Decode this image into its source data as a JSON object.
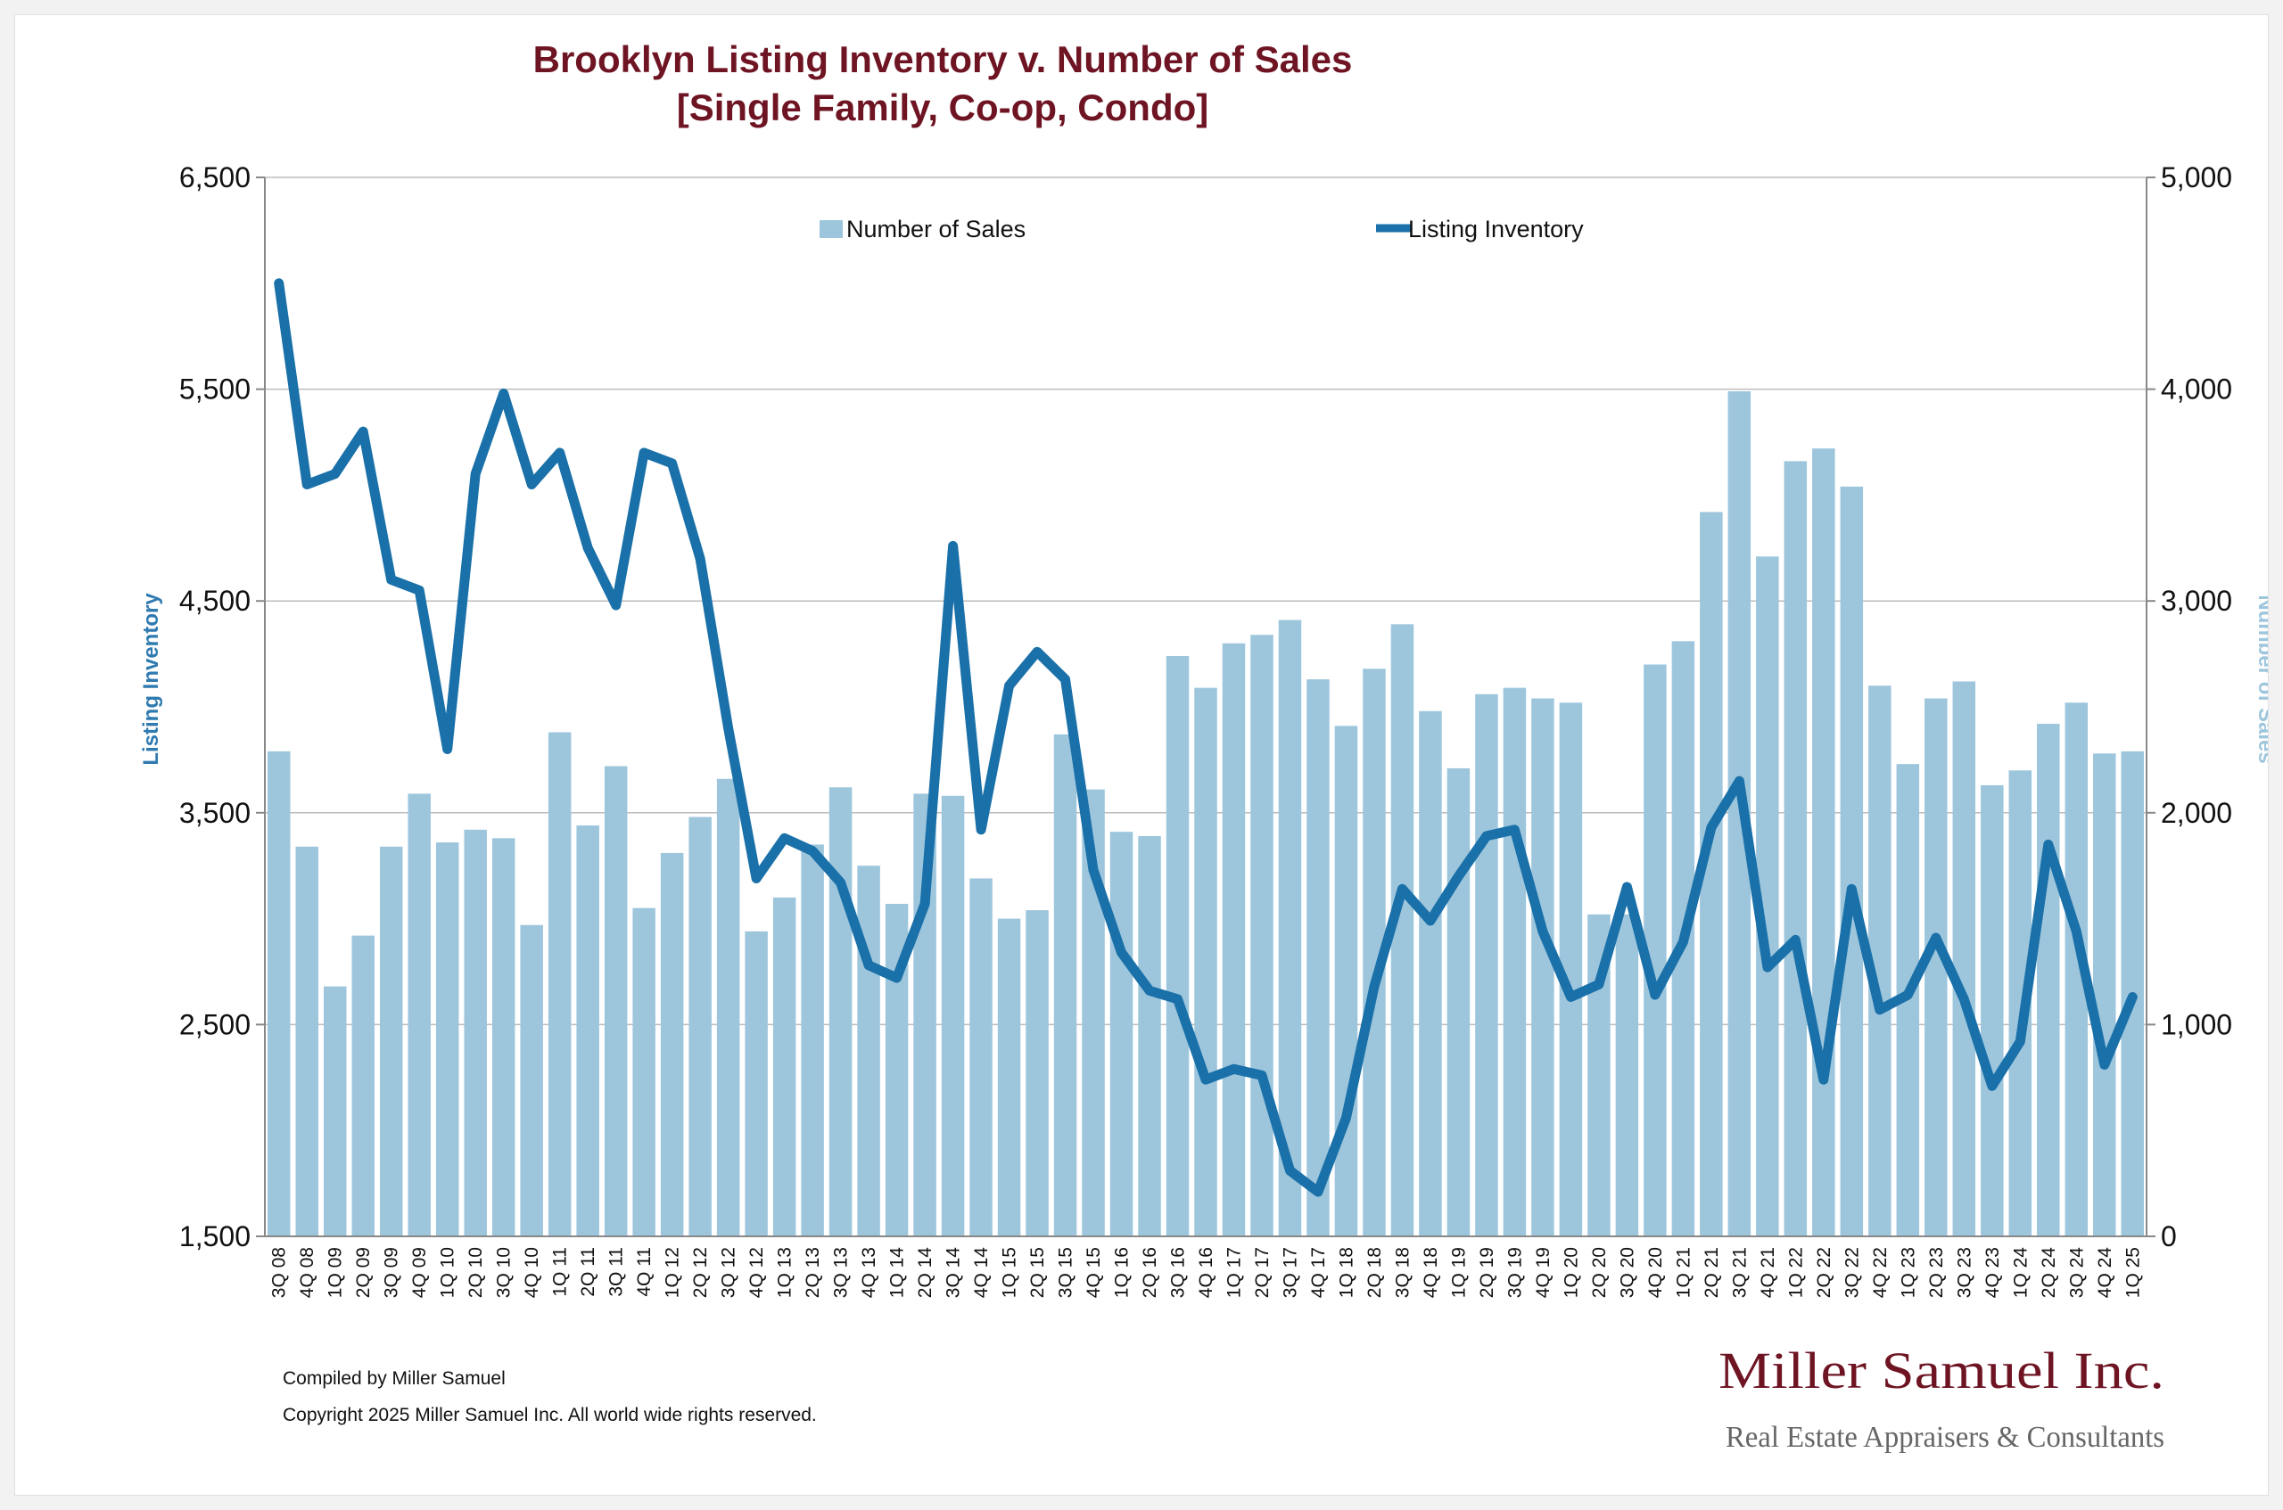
{
  "chart_data": {
    "type": "bar+line",
    "title_line1": "Brooklyn Listing Inventory v. Number of Sales",
    "title_line2": "[Single Family, Co-op, Condo]",
    "ylabel_left": "Listing Inventory",
    "ylabel_right": "Number of Sales",
    "ylim_left": [
      1500,
      6500
    ],
    "ylim_right": [
      0,
      5000
    ],
    "yticks_left": [
      "1,500",
      "2,500",
      "3,500",
      "4,500",
      "5,500",
      "6,500"
    ],
    "yticks_right": [
      "0",
      "1,000",
      "2,000",
      "3,000",
      "4,000",
      "5,000"
    ],
    "grid": true,
    "legend_position": "top-center",
    "categories": [
      "3Q 08",
      "4Q 08",
      "1Q 09",
      "2Q 09",
      "3Q 09",
      "4Q 09",
      "1Q 10",
      "2Q 10",
      "3Q 10",
      "4Q 10",
      "1Q 11",
      "2Q 11",
      "3Q 11",
      "4Q 11",
      "1Q 12",
      "2Q 12",
      "3Q 12",
      "4Q 12",
      "1Q 13",
      "2Q 13",
      "3Q 13",
      "4Q 13",
      "1Q 14",
      "2Q 14",
      "3Q 14",
      "4Q 14",
      "1Q 15",
      "2Q 15",
      "3Q 15",
      "4Q 15",
      "1Q 16",
      "2Q 16",
      "3Q 16",
      "4Q 16",
      "1Q 17",
      "2Q 17",
      "3Q 17",
      "4Q 17",
      "1Q 18",
      "2Q 18",
      "3Q 18",
      "4Q 18",
      "1Q 19",
      "2Q 19",
      "3Q 19",
      "4Q 19",
      "1Q 20",
      "2Q 20",
      "3Q 20",
      "4Q 20",
      "1Q 21",
      "2Q 21",
      "3Q 21",
      "4Q 21",
      "1Q 22",
      "2Q 22",
      "3Q 22",
      "4Q 22",
      "1Q 23",
      "2Q 23",
      "3Q 23",
      "4Q 23",
      "1Q 24",
      "2Q 24",
      "3Q 24",
      "4Q 24",
      "1Q 25"
    ],
    "series": [
      {
        "name": "Number of Sales",
        "type": "bar",
        "axis": "right",
        "color": "#9dc6dd",
        "values": [
          2290,
          1840,
          1180,
          1420,
          1840,
          2090,
          1860,
          1920,
          1880,
          1470,
          2380,
          1940,
          2220,
          1550,
          1810,
          1980,
          2160,
          1440,
          1600,
          1850,
          2120,
          1750,
          1570,
          2090,
          2080,
          1690,
          1500,
          1540,
          2370,
          2110,
          1910,
          1890,
          2740,
          2590,
          2800,
          2840,
          2910,
          2630,
          2410,
          2680,
          2890,
          2480,
          2210,
          2560,
          2590,
          2540,
          2520,
          1520,
          1520,
          2700,
          2810,
          3420,
          3990,
          3210,
          3660,
          3720,
          3540,
          2600,
          2230,
          2540,
          2620,
          2130,
          2200,
          2420,
          2520,
          2280,
          2290
        ]
      },
      {
        "name": "Listing Inventory",
        "type": "line",
        "axis": "left",
        "color": "#1a70a8",
        "values": [
          6000,
          5050,
          5100,
          5300,
          4600,
          4550,
          3800,
          5100,
          5480,
          5050,
          5200,
          4750,
          4480,
          5200,
          5150,
          4700,
          3900,
          3190,
          3380,
          3320,
          3170,
          2780,
          2720,
          3070,
          4760,
          3420,
          4100,
          4260,
          4130,
          3230,
          2840,
          2660,
          2620,
          2240,
          2290,
          2260,
          1810,
          1710,
          2060,
          2680,
          3140,
          2990,
          3200,
          3390,
          3420,
          2940,
          2630,
          2690,
          3150,
          2640,
          2890,
          3430,
          3650,
          2770,
          2900,
          2240,
          3140,
          2570,
          2640,
          2910,
          2620,
          2210,
          2420,
          3350,
          2940,
          2310,
          2630
        ]
      }
    ]
  },
  "footer": {
    "compiled": "Compiled by Miller Samuel",
    "copyright": "Copyright 2025 Miller Samuel Inc.  All world wide rights reserved."
  },
  "logo": {
    "name": "Miller Samuel Inc.",
    "tagline": "Real Estate Appraisers & Consultants"
  },
  "colors": {
    "title": "#6e1423",
    "bar": "#9dc6dd",
    "line": "#1a70a8",
    "axis_left_title": "#2f7ab0",
    "axis_right_title": "#9dc6dd",
    "grid": "#bdbdbd"
  }
}
